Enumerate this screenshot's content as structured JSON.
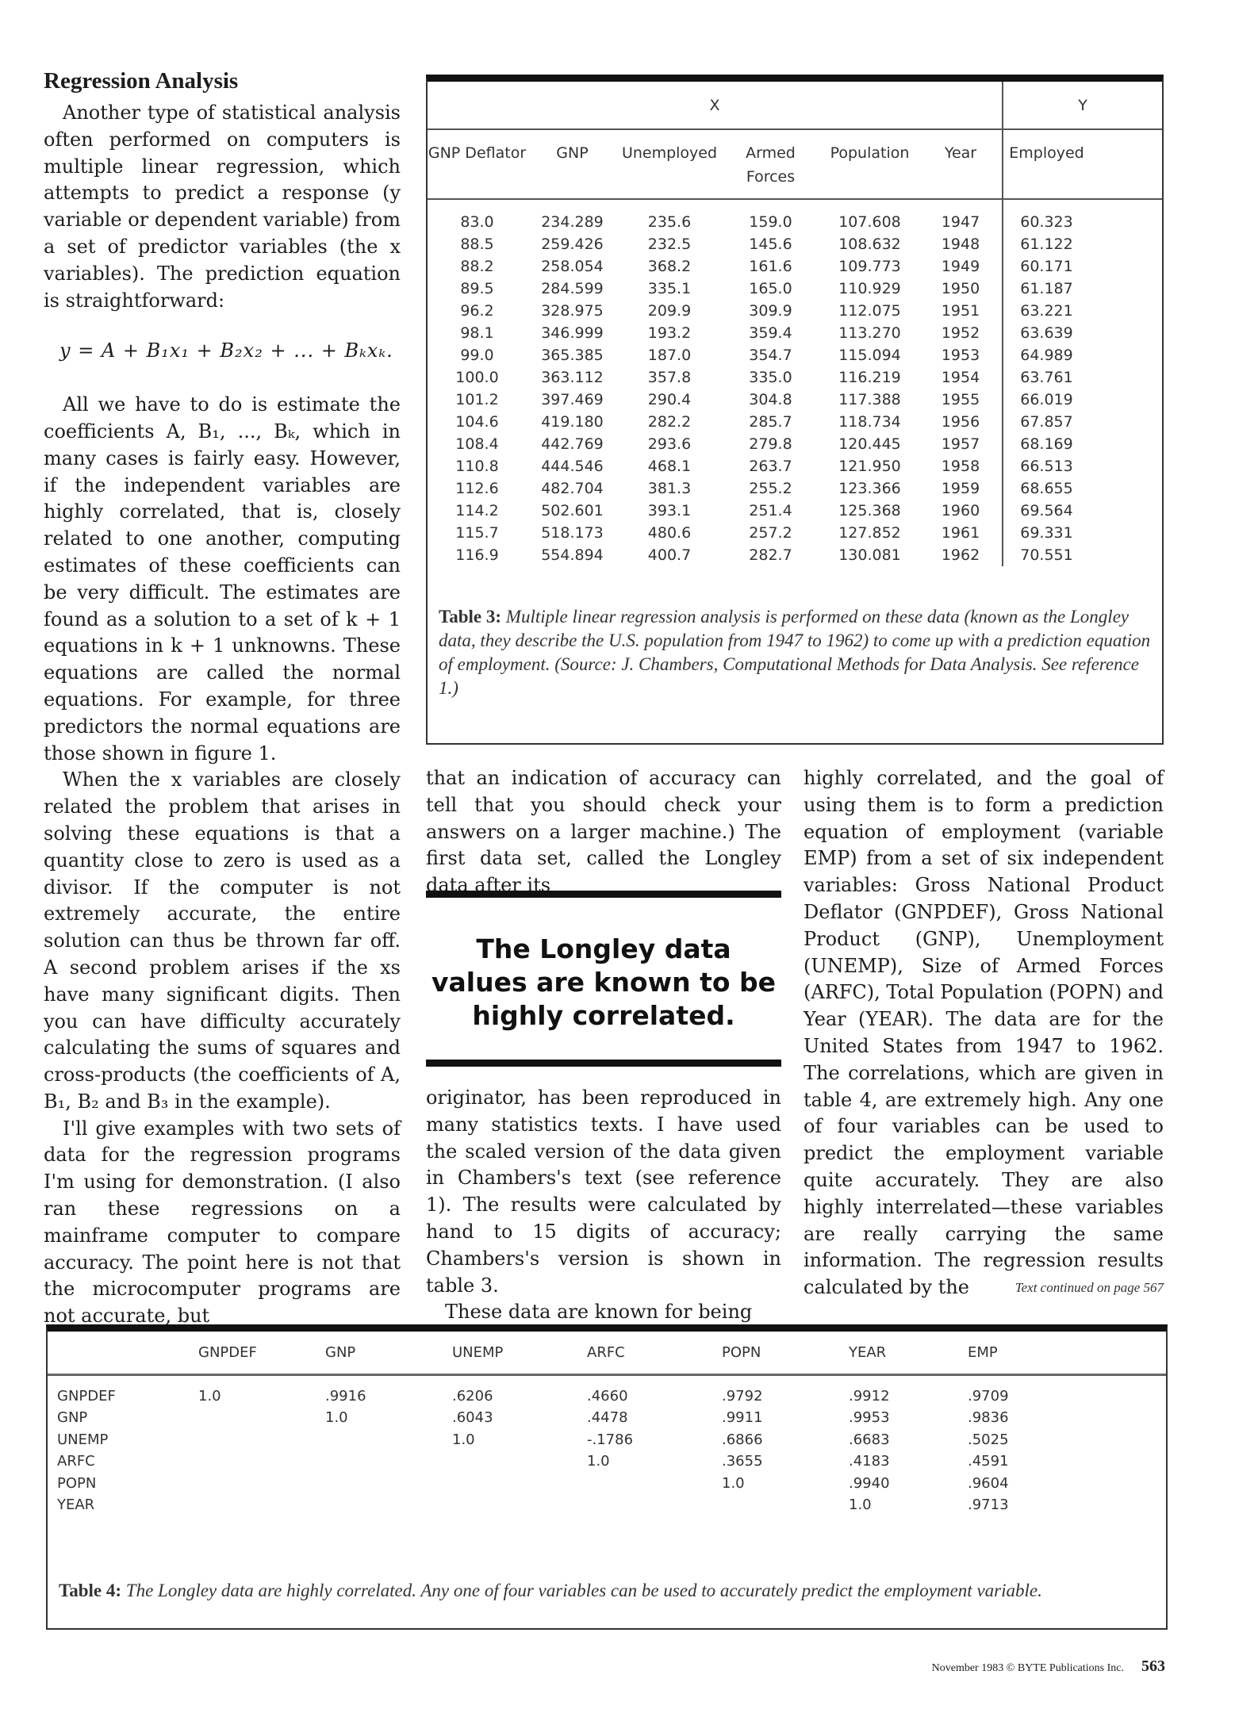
{
  "article": {
    "heading": "Regression Analysis",
    "left_column": [
      "Another type of statistical analysis often performed on computers is multiple linear regression, which attempts to predict a response (y variable or dependent variable) from a set of predictor variables (the x variables). The prediction equation is straightforward:",
      "All we have to do is estimate the coefficients A, B₁, ..., Bₖ, which in many cases is fairly easy. However, if the independent variables are highly correlated, that is, closely related to one another, computing estimates of these coefficients can be very difficult. The estimates are found as a solution to a set of k + 1 equations in k + 1 unknowns. These equations are called the normal equations. For example, for three predictors the normal equations are those shown in figure 1.",
      "When the x variables are closely related the problem that arises in solving these equations is that a quantity close to zero is used as a divisor. If the computer is not extremely accurate, the entire solution can thus be thrown far off. A second problem arises if the xs have many significant digits. Then you can have difficulty accurately calculating the sums of squares and cross-products (the coefficients of A, B₁, B₂ and B₃ in the example).",
      "I'll give examples with two sets of data for the regression programs I'm using for demonstration. (I also ran these regressions on a mainframe computer to compare accuracy. The point here is not that the microcomputer programs are not accurate, but"
    ],
    "equation": "y = A + B₁x₁ + B₂x₂ + ... + Bₖxₖ.",
    "middle_column_top": "that an indication of accuracy can tell that you should check your answers on a larger machine.) The first data set, called the Longley data after its",
    "pull_quote": "The Longley data values are known to be highly correlated.",
    "middle_column_bottom": [
      "originator, has been reproduced in many statistics texts. I have used the scaled version of the data given in Chambers's text (see reference 1). The results were calculated by hand to 15 digits of accuracy; Chambers's version is shown in table 3.",
      "These data are known for being"
    ],
    "right_column": "highly correlated, and the goal of using them is to form a prediction equation of employment (variable EMP) from a set of six independent variables: Gross National Product Deflator (GNPDEF), Gross National Product (GNP), Unemployment (UNEMP), Size of Armed Forces (ARFC), Total Population (POPN) and Year (YEAR). The data are for the United States from 1947 to 1962. The correlations, which are given in table 4, are extremely high. Any one of four variables can be used to predict the employment variable quite accurately. They are also highly interrelated—these variables are really carrying the same information. The regression results calculated by the",
    "continued": "Text continued on page 567"
  },
  "table3": {
    "group_x": "X",
    "group_y": "Y",
    "columns": [
      "GNP Deflator",
      "GNP",
      "Unemployed",
      "Armed Forces",
      "Population",
      "Year",
      "Employed"
    ],
    "rows": [
      [
        "83.0",
        "234.289",
        "235.6",
        "159.0",
        "107.608",
        "1947",
        "60.323"
      ],
      [
        "88.5",
        "259.426",
        "232.5",
        "145.6",
        "108.632",
        "1948",
        "61.122"
      ],
      [
        "88.2",
        "258.054",
        "368.2",
        "161.6",
        "109.773",
        "1949",
        "60.171"
      ],
      [
        "89.5",
        "284.599",
        "335.1",
        "165.0",
        "110.929",
        "1950",
        "61.187"
      ],
      [
        "96.2",
        "328.975",
        "209.9",
        "309.9",
        "112.075",
        "1951",
        "63.221"
      ],
      [
        "98.1",
        "346.999",
        "193.2",
        "359.4",
        "113.270",
        "1952",
        "63.639"
      ],
      [
        "99.0",
        "365.385",
        "187.0",
        "354.7",
        "115.094",
        "1953",
        "64.989"
      ],
      [
        "100.0",
        "363.112",
        "357.8",
        "335.0",
        "116.219",
        "1954",
        "63.761"
      ],
      [
        "101.2",
        "397.469",
        "290.4",
        "304.8",
        "117.388",
        "1955",
        "66.019"
      ],
      [
        "104.6",
        "419.180",
        "282.2",
        "285.7",
        "118.734",
        "1956",
        "67.857"
      ],
      [
        "108.4",
        "442.769",
        "293.6",
        "279.8",
        "120.445",
        "1957",
        "68.169"
      ],
      [
        "110.8",
        "444.546",
        "468.1",
        "263.7",
        "121.950",
        "1958",
        "66.513"
      ],
      [
        "112.6",
        "482.704",
        "381.3",
        "255.2",
        "123.366",
        "1959",
        "68.655"
      ],
      [
        "114.2",
        "502.601",
        "393.1",
        "251.4",
        "125.368",
        "1960",
        "69.564"
      ],
      [
        "115.7",
        "518.173",
        "480.6",
        "257.2",
        "127.852",
        "1961",
        "69.331"
      ],
      [
        "116.9",
        "554.894",
        "400.7",
        "282.7",
        "130.081",
        "1962",
        "70.551"
      ]
    ],
    "caption_label": "Table 3:",
    "caption": "Multiple linear regression analysis is performed on these data (known as the Longley data, they describe the U.S. population from 1947 to 1962) to come up with a prediction equation of employment. (Source: J. Chambers, Computational Methods for Data Analysis. See reference 1.)"
  },
  "table4": {
    "columns": [
      "GNPDEF",
      "GNP",
      "UNEMP",
      "ARFC",
      "POPN",
      "YEAR",
      "EMP"
    ],
    "rows": [
      {
        "label": "GNPDEF",
        "values": [
          "1.0",
          ".9916",
          ".6206",
          ".4660",
          ".9792",
          ".9912",
          ".9709"
        ]
      },
      {
        "label": "GNP",
        "values": [
          "",
          "1.0",
          ".6043",
          ".4478",
          ".9911",
          ".9953",
          ".9836"
        ]
      },
      {
        "label": "UNEMP",
        "values": [
          "",
          "",
          "1.0",
          "-.1786",
          ".6866",
          ".6683",
          ".5025"
        ]
      },
      {
        "label": "ARFC",
        "values": [
          "",
          "",
          "",
          "1.0",
          ".3655",
          ".4183",
          ".4591"
        ]
      },
      {
        "label": "POPN",
        "values": [
          "",
          "",
          "",
          "",
          "1.0",
          ".9940",
          ".9604"
        ]
      },
      {
        "label": "YEAR",
        "values": [
          "",
          "",
          "",
          "",
          "",
          "1.0",
          ".9713"
        ]
      }
    ],
    "caption_label": "Table 4:",
    "caption": "The Longley data are highly correlated. Any one of four variables can be used to accurately predict the employment variable."
  },
  "footer": {
    "credit": "November 1983 © BYTE Publications Inc.",
    "page_number": "563"
  }
}
